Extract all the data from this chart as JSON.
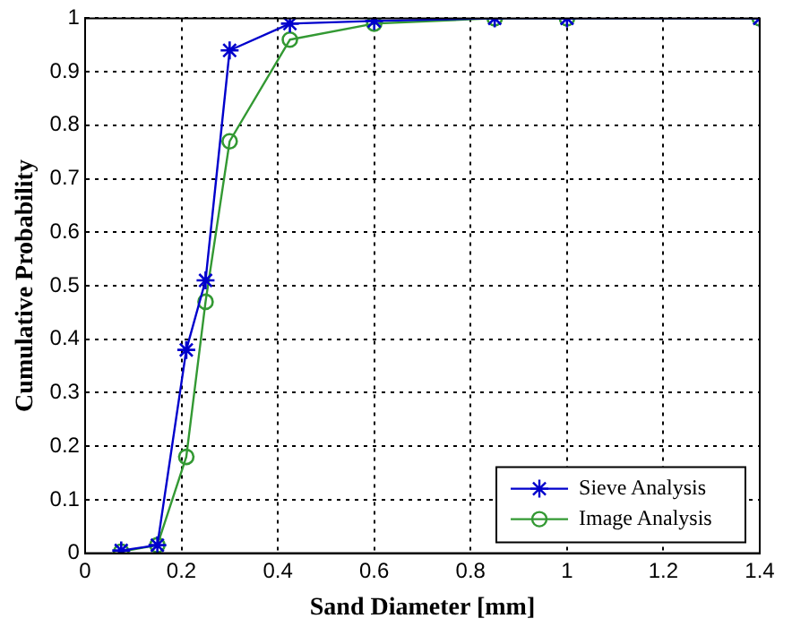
{
  "chart_data": {
    "type": "line",
    "xlabel": "Sand Diameter [mm]",
    "ylabel": "Cumulative Probability",
    "x": [
      0.075,
      0.15,
      0.21,
      0.25,
      0.3,
      0.425,
      0.6,
      0.85,
      1.0,
      1.4
    ],
    "series": [
      {
        "name": "Sieve Analysis",
        "color": "#0000cc",
        "marker": "cross",
        "values": [
          0.005,
          0.015,
          0.38,
          0.51,
          0.94,
          0.99,
          0.995,
          1,
          1,
          1
        ]
      },
      {
        "name": "Image Analysis",
        "color": "#339933",
        "marker": "circle",
        "values": [
          0.003,
          0.015,
          0.18,
          0.47,
          0.77,
          0.96,
          0.99,
          1,
          1,
          1
        ]
      }
    ],
    "xlim": [
      0,
      1.4
    ],
    "xticks": [
      0,
      0.2,
      0.4,
      0.6,
      0.8,
      1,
      1.2,
      1.4
    ],
    "ylim": [
      0,
      1
    ],
    "yticks": [
      0,
      0.1,
      0.2,
      0.3,
      0.4,
      0.5,
      0.6,
      0.7,
      0.8,
      0.9,
      1
    ],
    "grid": true,
    "legend": "bottom right",
    "line_style": "solid"
  }
}
